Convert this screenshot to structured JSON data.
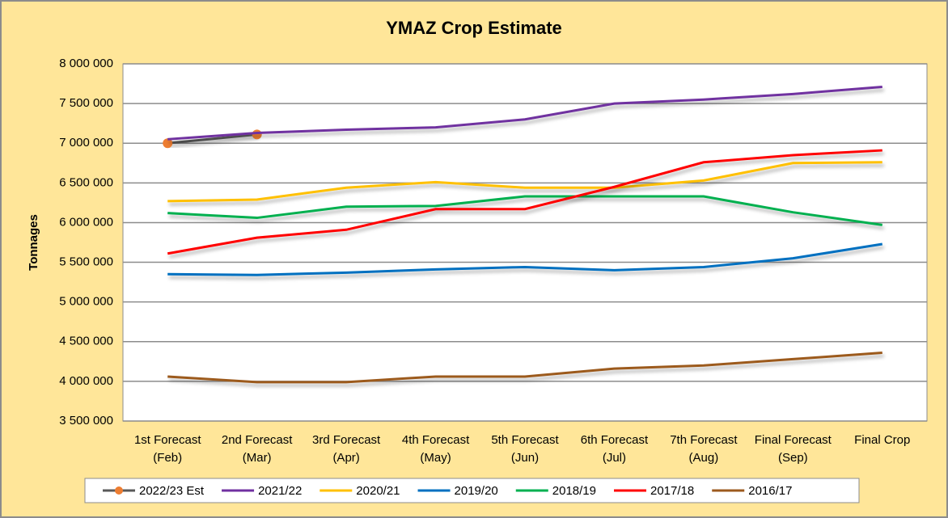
{
  "chart_data": {
    "type": "line",
    "title": "YMAZ Crop Estimate",
    "y_label": "Tonnages",
    "categories": [
      "1st Forecast\n(Feb)",
      "2nd Forecast\n(Mar)",
      "3rd Forecast\n(Apr)",
      "4th Forecast\n(May)",
      "5th Forecast\n(Jun)",
      "6th Forecast\n(Jul)",
      "7th Forecast\n(Aug)",
      "Final Forecast\n(Sep)",
      "Final Crop"
    ],
    "ylim": [
      3500000,
      8000000
    ],
    "yticks": [
      {
        "value": 3500000,
        "label": "3 500 000"
      },
      {
        "value": 4000000,
        "label": "4 000 000"
      },
      {
        "value": 4500000,
        "label": "4 500 000"
      },
      {
        "value": 5000000,
        "label": "5 000 000"
      },
      {
        "value": 5500000,
        "label": "5 500 000"
      },
      {
        "value": 6000000,
        "label": "6 000 000"
      },
      {
        "value": 6500000,
        "label": "6 500 000"
      },
      {
        "value": 7000000,
        "label": "7 000 000"
      },
      {
        "value": 7500000,
        "label": "7 500 000"
      },
      {
        "value": 8000000,
        "label": "8 000 000"
      }
    ],
    "grid": true,
    "legend": "bottom",
    "series": [
      {
        "name": "2022/23 Est",
        "color": "#595959",
        "marker_color": "#ed7d31",
        "values": [
          7000000,
          7110000,
          null,
          null,
          null,
          null,
          null,
          null,
          null
        ]
      },
      {
        "name": "2021/22",
        "color": "#7030a0",
        "values": [
          7050000,
          7130000,
          7170000,
          7200000,
          7300000,
          7500000,
          7550000,
          7620000,
          7710000
        ]
      },
      {
        "name": "2020/21",
        "color": "#ffc000",
        "values": [
          6270000,
          6290000,
          6440000,
          6510000,
          6440000,
          6440000,
          6530000,
          6750000,
          6760000
        ]
      },
      {
        "name": "2019/20",
        "color": "#0070c0",
        "values": [
          5350000,
          5340000,
          5370000,
          5410000,
          5440000,
          5400000,
          5440000,
          5550000,
          5730000
        ]
      },
      {
        "name": "2018/19",
        "color": "#00b050",
        "values": [
          6120000,
          6060000,
          6200000,
          6210000,
          6330000,
          6330000,
          6330000,
          6130000,
          5970000
        ]
      },
      {
        "name": "2017/18",
        "color": "#ff0000",
        "values": [
          5610000,
          5810000,
          5910000,
          6170000,
          6170000,
          6450000,
          6760000,
          6850000,
          6910000
        ]
      },
      {
        "name": "2016/17",
        "color": "#9c5a1e",
        "values": [
          4060000,
          3990000,
          3990000,
          4060000,
          4060000,
          4160000,
          4200000,
          4280000,
          4360000
        ]
      }
    ]
  }
}
